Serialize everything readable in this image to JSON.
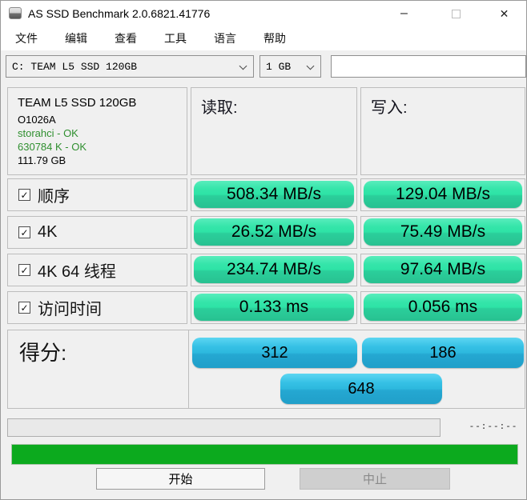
{
  "window": {
    "title": "AS SSD Benchmark 2.0.6821.41776",
    "minimize_glyph": "–",
    "close_glyph": "✕"
  },
  "menu": {
    "items": [
      "文件",
      "编辑",
      "查看",
      "工具",
      "语言",
      "帮助"
    ]
  },
  "toolbar": {
    "drive_select_value": "C: TEAM L5 SSD 120GB",
    "size_select_value": "1 GB",
    "textbox_value": ""
  },
  "drive_info": {
    "model": "TEAM L5 SSD 120GB",
    "firmware": "O1026A",
    "driver_status": "storahci - OK",
    "alignment_status": "630784 K - OK",
    "capacity": "111.79 GB"
  },
  "table": {
    "read_header": "读取:",
    "write_header": "写入:",
    "check_glyph": "✓",
    "rows": [
      {
        "label": "顺序",
        "checked": true,
        "read": "508.34 MB/s",
        "write": "129.04 MB/s"
      },
      {
        "label": "4K",
        "checked": true,
        "read": "26.52 MB/s",
        "write": "75.49 MB/s"
      },
      {
        "label": "4K 64 线程",
        "checked": true,
        "read": "234.74 MB/s",
        "write": "97.64 MB/s"
      },
      {
        "label": "访问时间",
        "checked": true,
        "read": "0.133 ms",
        "write": "0.056 ms"
      }
    ]
  },
  "score": {
    "label": "得分:",
    "read_score": "312",
    "write_score": "186",
    "total_score": "648"
  },
  "progress": {
    "time_remaining": "--:--:--"
  },
  "actions": {
    "start_label": "开始",
    "abort_label": "中止"
  },
  "colors": {
    "result_pill_green": "#2ee3a6",
    "score_pill_blue": "#2db9de",
    "status_ok_green": "#2f8f2f",
    "progress_green": "#0caa1e"
  }
}
